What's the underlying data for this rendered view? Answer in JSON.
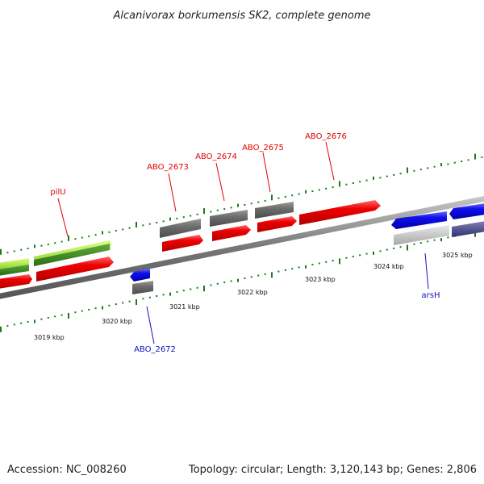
{
  "title": "Alcanivorax borkumensis SK2, complete genome",
  "footer": {
    "accession": "Accession: NC_008260",
    "summary": "Topology: circular; Length: 3,120,143 bp; Genes: 2,806"
  },
  "colors": {
    "forward_strand_label": "#e00000",
    "reverse_strand_label": "#1010c0",
    "cds_forward": "#ee0000",
    "cds_reverse": "#1010ee",
    "gene_box": "#6e6e6e",
    "backbone": "#7a7a7a",
    "tick": "#1a7a1a",
    "highlight_light": "#a8f040",
    "highlight_dark": "#3a8a20"
  },
  "ticks": {
    "labels": [
      "3019 kbp",
      "3020 kbp",
      "3021 kbp",
      "3022 kbp",
      "3023 kbp",
      "3024 kbp",
      "3025 kbp"
    ]
  },
  "genes": {
    "forward": [
      {
        "label": "pilU"
      },
      {
        "label": "ABO_2673"
      },
      {
        "label": "ABO_2674"
      },
      {
        "label": "ABO_2675"
      },
      {
        "label": "ABO_2676"
      }
    ],
    "reverse": [
      {
        "label": "ABO_2672"
      },
      {
        "label": "arsH"
      }
    ]
  }
}
